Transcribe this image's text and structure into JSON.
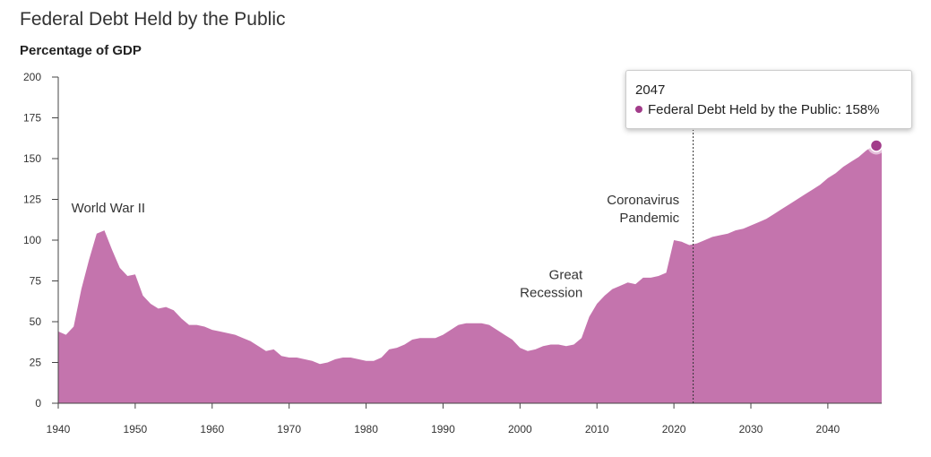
{
  "title": "Federal Debt Held by the Public",
  "subtitle": "Percentage of GDP",
  "colors": {
    "area": "#c474ad",
    "marker": "#a23c8a",
    "axis": "#444444"
  },
  "tooltip": {
    "year": "2047",
    "series_label": "Federal Debt Held by the Public: ",
    "value_text": "158%"
  },
  "chart_data": {
    "type": "area",
    "ylim": [
      0,
      200
    ],
    "xlim": [
      1940,
      2047
    ],
    "yticks": [
      0,
      25,
      50,
      75,
      100,
      125,
      150,
      175,
      200
    ],
    "xticks": [
      1940,
      1950,
      1960,
      1970,
      1980,
      1990,
      2000,
      2010,
      2020,
      2030,
      2040
    ],
    "grid": false,
    "series": [
      {
        "x": [
          1940,
          1941,
          1942,
          1943,
          1944,
          1945,
          1946,
          1947,
          1948,
          1949,
          1950,
          1951,
          1952,
          1953,
          1954,
          1955,
          1956,
          1957,
          1958,
          1959,
          1960,
          1961,
          1962,
          1963,
          1964,
          1965,
          1966,
          1967,
          1968,
          1969,
          1970,
          1971,
          1972,
          1973,
          1974,
          1975,
          1976,
          1977,
          1978,
          1979,
          1980,
          1981,
          1982,
          1983,
          1984,
          1985,
          1986,
          1987,
          1988,
          1989,
          1990,
          1991,
          1992,
          1993,
          1994,
          1995,
          1996,
          1997,
          1998,
          1999,
          2000,
          2001,
          2002,
          2003,
          2004,
          2005,
          2006,
          2007,
          2008,
          2009,
          2010,
          2011,
          2012,
          2013,
          2014,
          2015,
          2016,
          2017,
          2018,
          2019,
          2020,
          2021,
          2022,
          2023,
          2024,
          2025,
          2026,
          2027,
          2028,
          2029,
          2030,
          2031,
          2032,
          2033,
          2034,
          2035,
          2036,
          2037,
          2038,
          2039,
          2040,
          2041,
          2042,
          2043,
          2044,
          2045,
          2046,
          2047
        ],
        "values": [
          44,
          42,
          47,
          70,
          88,
          104,
          106,
          94,
          83,
          78,
          79,
          66,
          61,
          58,
          59,
          57,
          52,
          48,
          48,
          47,
          45,
          44,
          43,
          42,
          40,
          38,
          35,
          32,
          33,
          29,
          28,
          28,
          27,
          26,
          24,
          25,
          27,
          28,
          28,
          27,
          26,
          26,
          28,
          33,
          34,
          36,
          39,
          40,
          40,
          40,
          42,
          45,
          48,
          49,
          49,
          49,
          48,
          45,
          42,
          39,
          34,
          32,
          33,
          35,
          36,
          36,
          35,
          36,
          40,
          53,
          61,
          66,
          70,
          72,
          74,
          73,
          77,
          77,
          78,
          80,
          100,
          99,
          97,
          98,
          100,
          102,
          103,
          104,
          106,
          107,
          109,
          111,
          113,
          116,
          119,
          122,
          125,
          128,
          131,
          134,
          138,
          141,
          145,
          148,
          151,
          155,
          158,
          158
        ]
      }
    ],
    "annotations": [
      {
        "lines": [
          "World War II"
        ],
        "x": 1946.5,
        "y": 105
      },
      {
        "lines": [
          "Great",
          "Recession"
        ],
        "x": 2008.6,
        "y": 52
      },
      {
        "lines": [
          "Coronavirus",
          "Pandemic"
        ],
        "x": 2020.7,
        "y": 100
      }
    ],
    "reference_line_x": 2022.5,
    "highlight_point": {
      "x": 2047,
      "y": 158
    }
  }
}
